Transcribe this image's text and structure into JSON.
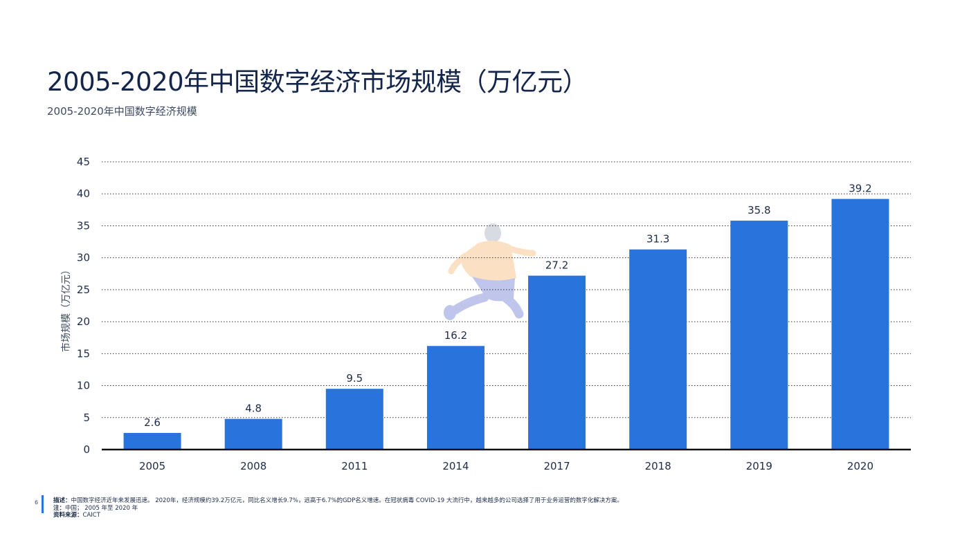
{
  "header": {
    "title": "2005-2020年中国数字经济市场规模（万亿元）",
    "subtitle": "2005-2020年中国数字经济规模"
  },
  "chart_data": {
    "type": "bar",
    "categories": [
      "2005",
      "2008",
      "2011",
      "2014",
      "2017",
      "2018",
      "2019",
      "2020"
    ],
    "values": [
      2.6,
      4.8,
      9.5,
      16.2,
      27.2,
      31.3,
      35.8,
      39.2
    ],
    "data_labels": [
      "2.6",
      "4.8",
      "9.5",
      "16.2",
      "27.2",
      "31.3",
      "35.8",
      "39.2"
    ],
    "title": "",
    "xlabel": "",
    "ylabel": "市场规模（万亿元）",
    "ylim": [
      0,
      45
    ],
    "yticks": [
      0,
      5,
      10,
      15,
      20,
      25,
      30,
      35,
      40,
      45
    ],
    "grid": true,
    "grid_style": "dotted",
    "bar_color": "#2874dc",
    "legend": "none"
  },
  "footer": {
    "page_number": "6",
    "description_label": "描述：",
    "description_text": "中国数字经济近年来发展迅速。 2020年，经济规模约39.2万亿元，同比名义增长9.7%，远高于6.7%的GDP名义增速。在冠状病毒 COVID-19 大流行中，越来越多的公司选择了用于业务运营的数字化解决方案。",
    "note_label": "注：",
    "note_text": "中国； 2005 年至 2020 年",
    "source_label": "资料来源：",
    "source_text": "CAICT"
  },
  "colors": {
    "accent": "#2874dc",
    "title": "#13254a",
    "axis": "#111111",
    "grid": "#333333"
  }
}
